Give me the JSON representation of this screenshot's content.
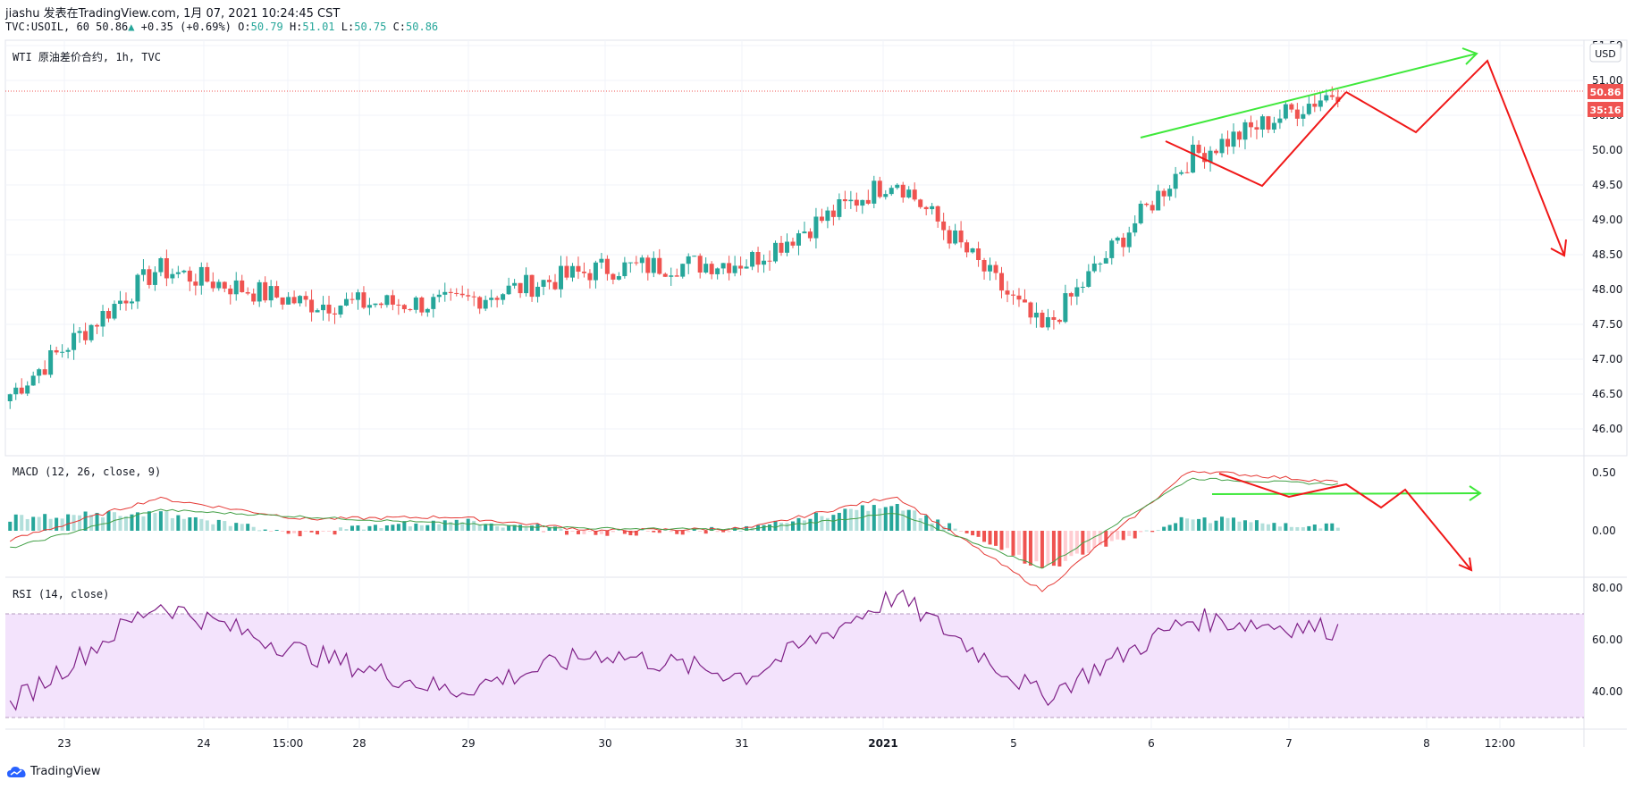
{
  "header": {
    "line1": "jiashu 发表在TradingView.com, 1月 07, 2021 10:24:45 CST",
    "symbol": "TVC:USOIL, 60",
    "last": "50.86",
    "change": "+0.35 (+0.69%)",
    "o_label": "O:",
    "o": "50.79",
    "h_label": "H:",
    "h": "51.01",
    "l_label": "L:",
    "l": "50.75",
    "c_label": "C:",
    "c": "50.86"
  },
  "panes": {
    "price_title": "WTI 原油差价合约, 1h, TVC",
    "macd_title": "MACD (12, 26, close, 9)",
    "rsi_title": "RSI (14, close)"
  },
  "price_axis": {
    "currency": "USD",
    "ticks": [
      "51.50",
      "51.00",
      "50.50",
      "50.00",
      "49.50",
      "49.00",
      "48.50",
      "48.00",
      "47.50",
      "47.00",
      "46.50",
      "46.00"
    ],
    "last_price_label": "50.86",
    "countdown_label": "35:16"
  },
  "macd_axis": {
    "ticks": [
      "0.50",
      "0.00"
    ]
  },
  "rsi_axis": {
    "ticks": [
      "80.00",
      "60.00",
      "40.00"
    ]
  },
  "time_axis": {
    "labels": [
      "23",
      "24",
      "15:00",
      "28",
      "29",
      "30",
      "31",
      "2021",
      "5",
      "6",
      "7",
      "8",
      "12:00"
    ]
  },
  "brand": {
    "name": "TradingView"
  },
  "colors": {
    "up": "#26a69a",
    "down": "#ef5350",
    "macd": "#e53935",
    "signal": "#43a047",
    "rsi": "#7e1f86",
    "annot_green": "#3ee83a",
    "annot_red": "#f01818"
  },
  "chart_data": [
    {
      "type": "candlestick",
      "title": "WTI 原油差价合约, 1h, TVC",
      "ylim": [
        45.9,
        51.6
      ],
      "x": [
        "12-23",
        "12-24",
        "12-28",
        "12-29",
        "12-30",
        "12-31",
        "01-04",
        "01-05",
        "01-06",
        "01-07"
      ],
      "close": [
        46.5,
        48.3,
        47.8,
        47.8,
        48.3,
        48.4,
        49.6,
        47.4,
        49.9,
        50.86
      ],
      "last": 50.86
    },
    {
      "type": "line",
      "title": "MACD (12, 26, close, 9)",
      "ylim": [
        -0.7,
        0.62
      ],
      "series": [
        {
          "name": "MACD",
          "values": [
            -0.08,
            0.28,
            0.1,
            0.12,
            0.0,
            0.02,
            0.3,
            -0.52,
            0.52,
            0.42
          ]
        },
        {
          "name": "Signal",
          "values": [
            -0.15,
            0.18,
            0.12,
            0.06,
            0.02,
            0.01,
            0.15,
            -0.32,
            0.45,
            0.4
          ]
        }
      ]
    },
    {
      "type": "line",
      "title": "RSI (14, close)",
      "ylim": [
        24,
        84
      ],
      "bands": [
        30,
        70
      ],
      "series": [
        {
          "name": "RSI",
          "values": [
            35,
            74,
            55,
            40,
            55,
            46,
            77,
            38,
            68,
            64
          ]
        }
      ]
    }
  ]
}
